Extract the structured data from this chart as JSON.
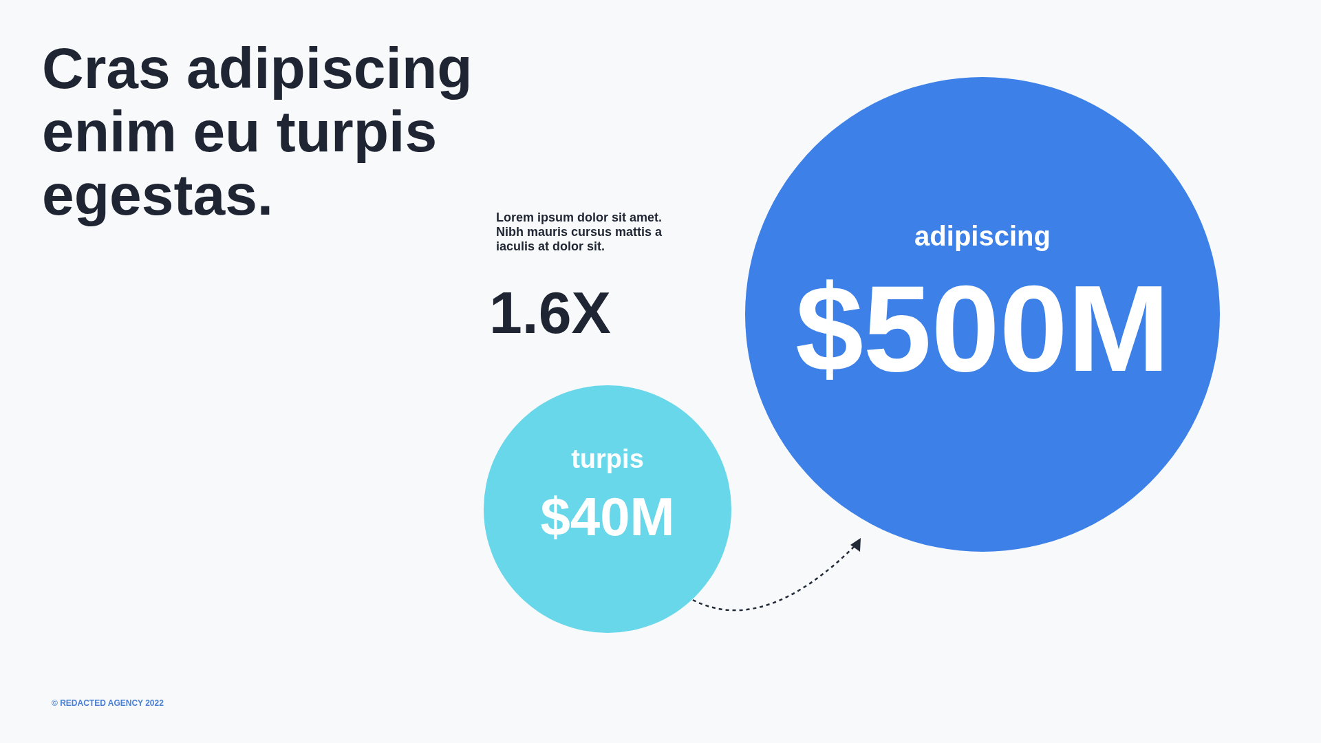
{
  "chart_data": {
    "type": "other",
    "title": "Cras adipiscing\nenim eu turpis\negestas.",
    "categories": [
      "turpis",
      "adipiscing"
    ],
    "values": [
      40,
      500
    ],
    "value_labels": [
      "$40M",
      "$500M"
    ],
    "colors": [
      "#69d7ea",
      "#3d80e8"
    ],
    "annotations": [
      "Lorem ipsum dolor sit amet.\nNibh mauris cursus mattis a\niaculis at dolor sit.",
      "1.6X",
      "© REDACTED AGENCY 2022"
    ]
  }
}
